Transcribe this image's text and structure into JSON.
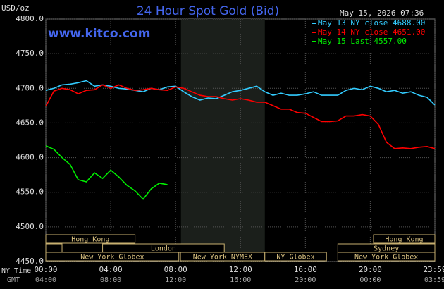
{
  "chart_data": {
    "type": "line",
    "title": "24 Hour Spot Gold (Bid)",
    "timestamp": "May 15, 2026 07:36",
    "watermark": "www.kitco.com",
    "y_label": "USD/oz",
    "x_label": "NY Time",
    "x2_label": "GMT",
    "x": [
      0,
      0.5,
      1,
      1.5,
      2,
      2.5,
      3,
      3.5,
      4,
      4.5,
      5,
      5.5,
      6,
      6.5,
      7,
      7.5,
      8,
      8.5,
      9,
      9.5,
      10,
      10.5,
      11,
      11.5,
      12,
      12.5,
      13,
      13.5,
      14,
      14.5,
      15,
      15.5,
      16,
      16.5,
      17,
      17.5,
      18,
      18.5,
      19,
      19.5,
      20,
      20.5,
      21,
      21.5,
      22,
      22.5,
      23,
      23.5,
      23.98
    ],
    "xlim": [
      0,
      23.98
    ],
    "xticks": [
      {
        "value": 0,
        "label": "00:00"
      },
      {
        "value": 4,
        "label": "04:00"
      },
      {
        "value": 8,
        "label": "08:00"
      },
      {
        "value": 12,
        "label": "12:00"
      },
      {
        "value": 16,
        "label": "16:00"
      },
      {
        "value": 20,
        "label": "20:00"
      },
      {
        "value": 23.98,
        "label": "23:59"
      }
    ],
    "x2ticks": [
      "04:00",
      "08:00",
      "12:00",
      "16:00",
      "20:00",
      "00:00",
      "03:59"
    ],
    "ylim": [
      4450,
      4800
    ],
    "yticks": [
      {
        "value": 4450,
        "label": "4450.0"
      },
      {
        "value": 4500,
        "label": "4500.0"
      },
      {
        "value": 4550,
        "label": "4550.0"
      },
      {
        "value": 4600,
        "label": "4600.0"
      },
      {
        "value": 4650,
        "label": "4650.0"
      },
      {
        "value": 4700,
        "label": "4700.0"
      },
      {
        "value": 4750,
        "label": "4750.0"
      },
      {
        "value": 4800,
        "label": "4800.0"
      }
    ],
    "grid": true,
    "series": [
      {
        "name": "May 13 NY close 4688.00",
        "color": "#33ccff",
        "values": [
          4697,
          4700,
          4705,
          4706,
          4708,
          4711,
          4703,
          4705,
          4703,
          4700,
          4699,
          4697,
          4695,
          4700,
          4698,
          4702,
          4703,
          4695,
          4688,
          4683,
          4686,
          4685,
          4690,
          4695,
          4697,
          4700,
          4703,
          4695,
          4690,
          4693,
          4690,
          4690,
          4692,
          4695,
          4690,
          4690,
          4690,
          4697,
          4700,
          4698,
          4703,
          4700,
          4695,
          4697,
          4693,
          4695,
          4690,
          4687,
          4676
        ]
      },
      {
        "name": "May 14 NY close 4651.00",
        "color": "#ff0000",
        "values": [
          4674,
          4696,
          4700,
          4698,
          4692,
          4697,
          4698,
          4705,
          4700,
          4705,
          4700,
          4697,
          4698,
          4700,
          4698,
          4697,
          4702,
          4700,
          4695,
          4690,
          4688,
          4688,
          4685,
          4683,
          4685,
          4683,
          4680,
          4680,
          4675,
          4670,
          4670,
          4665,
          4664,
          4658,
          4652,
          4652,
          4653,
          4660,
          4660,
          4662,
          4660,
          4648,
          4622,
          4613,
          4614,
          4613,
          4615,
          4616,
          4613
        ]
      },
      {
        "name": "May 15 Last 4557.00",
        "color": "#00ee00",
        "values": [
          4617,
          4612,
          4600,
          4590,
          4568,
          4565,
          4578,
          4570,
          4582,
          4572,
          4560,
          4552,
          4540,
          4555,
          4563,
          4561,
          null,
          null,
          null,
          null,
          null,
          null,
          null,
          null,
          null,
          null,
          null,
          null,
          null,
          null,
          null,
          null,
          null,
          null,
          null,
          null,
          null,
          null,
          null,
          null,
          null,
          null,
          null,
          null,
          null,
          null,
          null,
          null,
          null
        ]
      }
    ],
    "sessions": [
      "Hong Kong",
      "Hong Kong",
      "London",
      "Sydney",
      "New York Globex",
      "New York NYMEX",
      "NY Globex",
      "New York Globex"
    ]
  }
}
